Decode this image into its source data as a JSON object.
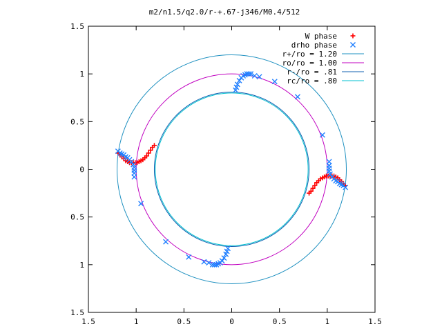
{
  "chart_data": {
    "type": "scatter",
    "title": "m2/n1.5/q2.0/r-+.67-j346/M0.4/512",
    "xlabel": "",
    "ylabel": "",
    "xlim": [
      -1.5,
      1.5
    ],
    "ylim": [
      -1.5,
      1.5
    ],
    "x_ticks": [
      -1.5,
      -1,
      -0.5,
      0,
      0.5,
      1,
      1.5
    ],
    "y_ticks": [
      -1.5,
      -1,
      -0.5,
      0,
      0.5,
      1,
      1.5
    ],
    "x_tick_labels": [
      "1.5",
      "1",
      "0.5",
      "0",
      "0.5",
      "1",
      "1.5"
    ],
    "y_tick_labels": [
      "1.5",
      "1",
      "0.5",
      "0",
      "0.5",
      "1",
      "1.5"
    ],
    "grid": false,
    "legend_position": "top-right",
    "legend": [
      {
        "label": "W phase",
        "marker": "plus",
        "color": "#ff0000"
      },
      {
        "label": "drho phase",
        "marker": "x",
        "color": "#1f7fff"
      },
      {
        "label": "r+/ro = 1.20",
        "marker": "line",
        "color": "#1e90c0"
      },
      {
        "label": "ro/ro = 1.00",
        "marker": "line",
        "color": "#c000c0"
      },
      {
        "label": "r-/ro = .81",
        "marker": "line",
        "color": "#1060b0"
      },
      {
        "label": "rc/ro = .80",
        "marker": "line",
        "color": "#00c0d0"
      }
    ],
    "circles": [
      {
        "name": "r+/ro = 1.20",
        "radius": 1.2,
        "color": "#1e90c0"
      },
      {
        "name": "ro/ro = 1.00",
        "radius": 1.0,
        "color": "#c000c0"
      },
      {
        "name": "r-/ro = .81",
        "radius": 0.81,
        "color": "#1060b0"
      },
      {
        "name": "rc/ro = .80",
        "radius": 0.8,
        "color": "#00c0d0"
      }
    ],
    "series": [
      {
        "name": "W phase",
        "marker": "plus",
        "color": "#ff0000",
        "points": [
          [
            -1.19,
            0.17
          ],
          [
            -1.17,
            0.15
          ],
          [
            -1.15,
            0.13
          ],
          [
            -1.13,
            0.11
          ],
          [
            -1.11,
            0.09
          ],
          [
            -1.09,
            0.08
          ],
          [
            -1.07,
            0.07
          ],
          [
            -1.05,
            0.07
          ],
          [
            -1.03,
            0.07
          ],
          [
            -1.01,
            0.07
          ],
          [
            -0.99,
            0.07
          ],
          [
            -0.97,
            0.08
          ],
          [
            -0.95,
            0.09
          ],
          [
            -0.93,
            0.1
          ],
          [
            -0.91,
            0.12
          ],
          [
            -0.89,
            0.14
          ],
          [
            -0.87,
            0.17
          ],
          [
            -0.85,
            0.2
          ],
          [
            -0.83,
            0.23
          ],
          [
            -0.81,
            0.25
          ],
          [
            1.19,
            -0.17
          ],
          [
            1.17,
            -0.15
          ],
          [
            1.15,
            -0.13
          ],
          [
            1.13,
            -0.11
          ],
          [
            1.11,
            -0.09
          ],
          [
            1.09,
            -0.08
          ],
          [
            1.07,
            -0.07
          ],
          [
            1.05,
            -0.07
          ],
          [
            1.03,
            -0.07
          ],
          [
            1.01,
            -0.07
          ],
          [
            0.99,
            -0.07
          ],
          [
            0.97,
            -0.08
          ],
          [
            0.95,
            -0.09
          ],
          [
            0.93,
            -0.1
          ],
          [
            0.91,
            -0.12
          ],
          [
            0.89,
            -0.14
          ],
          [
            0.87,
            -0.17
          ],
          [
            0.85,
            -0.2
          ],
          [
            0.83,
            -0.23
          ],
          [
            0.81,
            -0.25
          ]
        ]
      },
      {
        "name": "drho phase",
        "marker": "x",
        "color": "#1f7fff",
        "points": [
          [
            -1.19,
            0.19
          ],
          [
            -1.17,
            0.17
          ],
          [
            -1.15,
            0.16
          ],
          [
            -1.13,
            0.15
          ],
          [
            -1.11,
            0.13
          ],
          [
            -1.09,
            0.12
          ],
          [
            -1.07,
            0.1
          ],
          [
            -1.05,
            0.08
          ],
          [
            -1.03,
            0.05
          ],
          [
            -1.02,
            0.02
          ],
          [
            -1.02,
            -0.01
          ],
          [
            -1.02,
            -0.04
          ],
          [
            -1.02,
            -0.08
          ],
          [
            1.19,
            -0.19
          ],
          [
            1.17,
            -0.17
          ],
          [
            1.15,
            -0.16
          ],
          [
            1.13,
            -0.15
          ],
          [
            1.11,
            -0.13
          ],
          [
            1.09,
            -0.12
          ],
          [
            1.07,
            -0.1
          ],
          [
            1.05,
            -0.08
          ],
          [
            1.03,
            -0.05
          ],
          [
            1.02,
            -0.02
          ],
          [
            1.02,
            0.01
          ],
          [
            1.02,
            0.04
          ],
          [
            1.02,
            0.08
          ],
          [
            0.04,
            0.83
          ],
          [
            0.05,
            0.86
          ],
          [
            0.06,
            0.89
          ],
          [
            0.08,
            0.93
          ],
          [
            0.1,
            0.96
          ],
          [
            0.12,
            0.98
          ],
          [
            0.14,
            0.99
          ],
          [
            0.16,
            1.0
          ],
          [
            0.18,
            1.0
          ],
          [
            0.2,
            1.0
          ],
          [
            -0.04,
            -0.83
          ],
          [
            -0.05,
            -0.86
          ],
          [
            -0.06,
            -0.89
          ],
          [
            -0.08,
            -0.93
          ],
          [
            -0.1,
            -0.96
          ],
          [
            -0.12,
            -0.98
          ],
          [
            -0.14,
            -0.99
          ],
          [
            -0.16,
            -1.0
          ],
          [
            -0.18,
            -1.0
          ],
          [
            -0.2,
            -1.0
          ],
          [
            0.24,
            0.98
          ],
          [
            0.29,
            0.97
          ],
          [
            0.45,
            0.92
          ],
          [
            0.69,
            0.76
          ],
          [
            0.95,
            0.36
          ],
          [
            -0.24,
            -0.98
          ],
          [
            -0.29,
            -0.97
          ],
          [
            -0.45,
            -0.92
          ],
          [
            -0.69,
            -0.76
          ],
          [
            -0.95,
            -0.36
          ]
        ]
      }
    ]
  }
}
